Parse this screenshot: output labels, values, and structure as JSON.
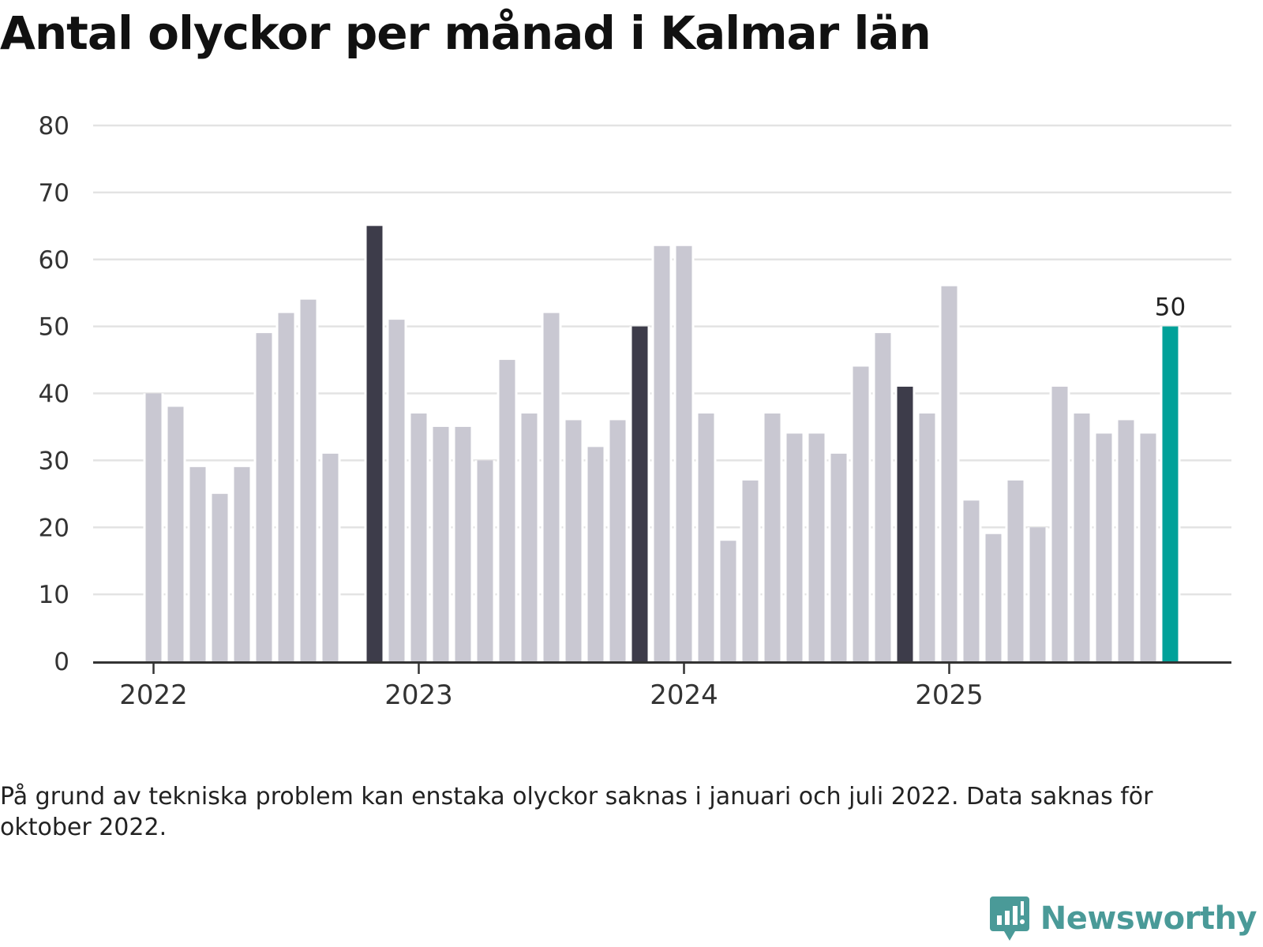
{
  "title": "Antal olyckor per månad i Kalmar län",
  "note": "På grund av tekniska problem kan enstaka olyckor saknas i januari och juli 2022. Data saknas för oktober 2022.",
  "brand": {
    "name": "Newsworthy",
    "icon": "newsworthy-logo-icon"
  },
  "colors": {
    "bar": "#c9c8d2",
    "highlight": "#3d3c4a",
    "latest": "#00a199",
    "grid": "#e3e3e3",
    "axis": "#333333"
  },
  "chart_data": {
    "type": "bar",
    "title": "Antal olyckor per månad i Kalmar län",
    "xlabel": "",
    "ylabel": "",
    "ylim": [
      0,
      80
    ],
    "yticks": [
      "0",
      "10",
      "20",
      "30",
      "40",
      "50",
      "60",
      "70",
      "80"
    ],
    "xticks": [
      "2022",
      "2023",
      "2024",
      "2025"
    ],
    "grid": true,
    "start": "2022-01",
    "categories": [
      "2022-01",
      "2022-02",
      "2022-03",
      "2022-04",
      "2022-05",
      "2022-06",
      "2022-07",
      "2022-08",
      "2022-09",
      "2022-10",
      "2022-11",
      "2022-12",
      "2023-01",
      "2023-02",
      "2023-03",
      "2023-04",
      "2023-05",
      "2023-06",
      "2023-07",
      "2023-08",
      "2023-09",
      "2023-10",
      "2023-11",
      "2023-12",
      "2024-01",
      "2024-02",
      "2024-03",
      "2024-04",
      "2024-05",
      "2024-06",
      "2024-07",
      "2024-08",
      "2024-09",
      "2024-10",
      "2024-11",
      "2024-12",
      "2025-01",
      "2025-02",
      "2025-03",
      "2025-04",
      "2025-05",
      "2025-06",
      "2025-07",
      "2025-08",
      "2025-09",
      "2025-10",
      "2025-11"
    ],
    "values": [
      40,
      38,
      29,
      25,
      29,
      49,
      52,
      54,
      31,
      null,
      65,
      51,
      37,
      35,
      35,
      30,
      45,
      37,
      52,
      36,
      32,
      36,
      50,
      62,
      62,
      37,
      18,
      27,
      37,
      34,
      34,
      31,
      44,
      49,
      41,
      37,
      56,
      24,
      19,
      27,
      20,
      41,
      37,
      34,
      36,
      34,
      50
    ],
    "highlighted": [
      "2022-11",
      "2023-11",
      "2024-11"
    ],
    "latest": "2025-11",
    "data_labels": [
      {
        "category": "2025-11",
        "text": "50"
      }
    ]
  }
}
